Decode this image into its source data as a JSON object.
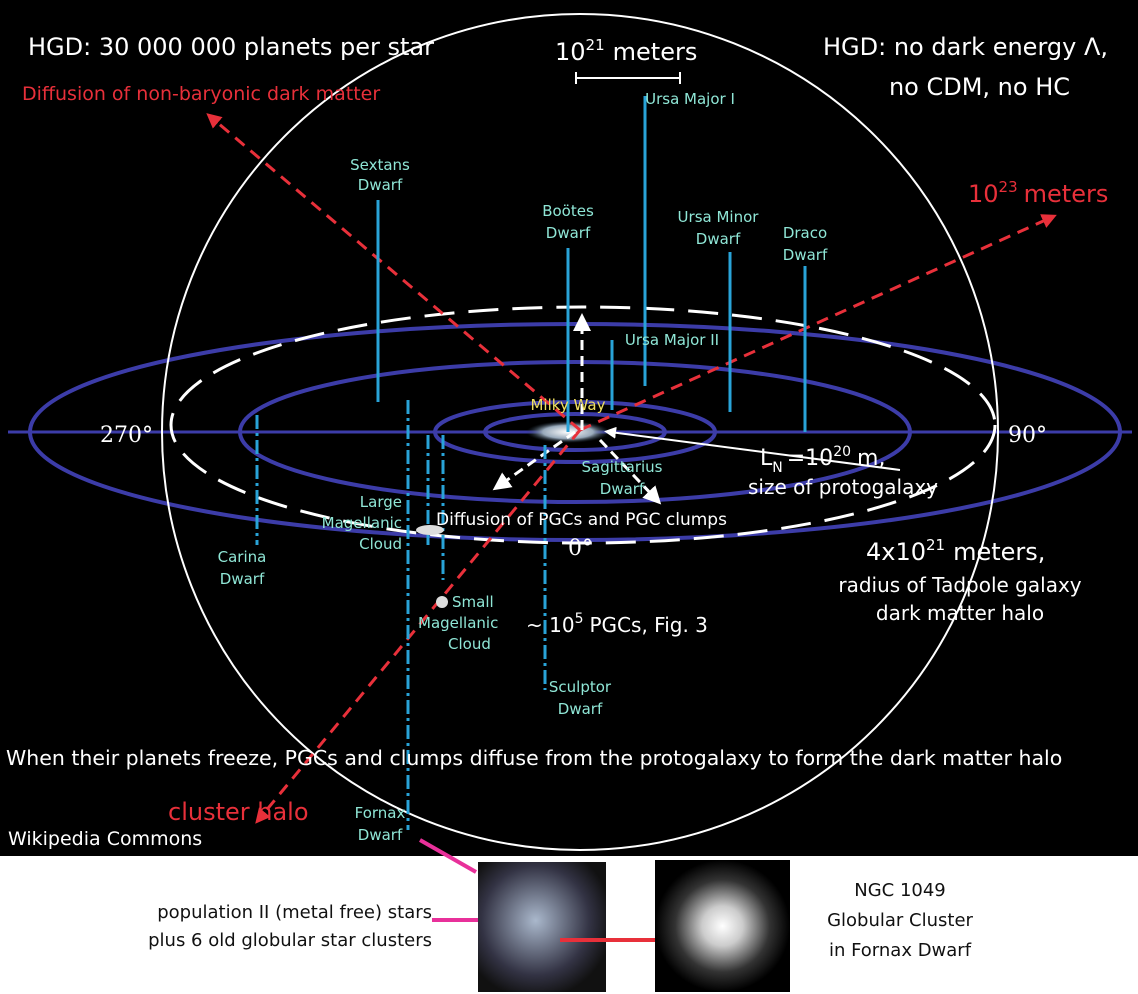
{
  "header": {
    "left": "HGD: 30 000 000 planets per star",
    "right_lines": [
      "HGD: no dark energy Λ,",
      "no CDM, no HC"
    ]
  },
  "scale_bar": {
    "base": "10",
    "exponent": "21",
    "unit": "meters"
  },
  "arrows": {
    "dark_matter_diffusion": "Diffusion of non-baryonic dark matter",
    "outer_scale": {
      "base": "10",
      "exponent": "23",
      "unit": "meters"
    },
    "cluster_halo": "cluster halo"
  },
  "angles": [
    "270°",
    "90°",
    "0°"
  ],
  "galaxies": [
    {
      "lines": [
        "Ursa Major I"
      ]
    },
    {
      "lines": [
        "Sextans",
        "Dwarf"
      ]
    },
    {
      "lines": [
        "Boötes",
        "Dwarf"
      ]
    },
    {
      "lines": [
        "Ursa Minor",
        "Dwarf"
      ]
    },
    {
      "lines": [
        "Draco",
        "Dwarf"
      ]
    },
    {
      "lines": [
        "Ursa Major II"
      ]
    },
    {
      "lines": [
        "Milky Way"
      ]
    },
    {
      "lines": [
        "Sagittarius",
        "Dwarf"
      ]
    },
    {
      "lines": [
        "Large",
        "Magellanic",
        "Cloud"
      ]
    },
    {
      "lines": [
        "Carina",
        "Dwarf"
      ]
    },
    {
      "lines": [
        "Small",
        "Magellanic",
        "Cloud"
      ]
    },
    {
      "lines": [
        "Sculptor",
        "Dwarf"
      ]
    },
    {
      "lines": [
        "Fornax",
        "Dwarf"
      ]
    }
  ],
  "protogalaxy": {
    "symbol": "L",
    "subscript": "N",
    "equals": "=10",
    "exponent": "20",
    "unit": "m,",
    "caption": "size of protogalaxy"
  },
  "pgc_diffusion": "Diffusion of PGCs and PGC clumps",
  "halo_radius": {
    "prefix": "4x10",
    "exponent": "21",
    "unit": "meters,",
    "lines": [
      "radius of Tadpole galaxy",
      "dark matter halo"
    ]
  },
  "pgc_count": {
    "prefix": "~ 10",
    "exponent": "5",
    "suffix": "PGCs, Fig. 3"
  },
  "caption": "When their planets freeze, PGCs and clumps diffuse from the protogalaxy to form the dark matter halo",
  "credit": "Wikipedia Commons",
  "inset": {
    "left_lines": [
      "population II (metal free) stars",
      "plus 6 old globular star clusters"
    ],
    "right_lines": [
      "NGC 1049",
      "Globular Cluster",
      "in Fornax Dwarf"
    ]
  }
}
